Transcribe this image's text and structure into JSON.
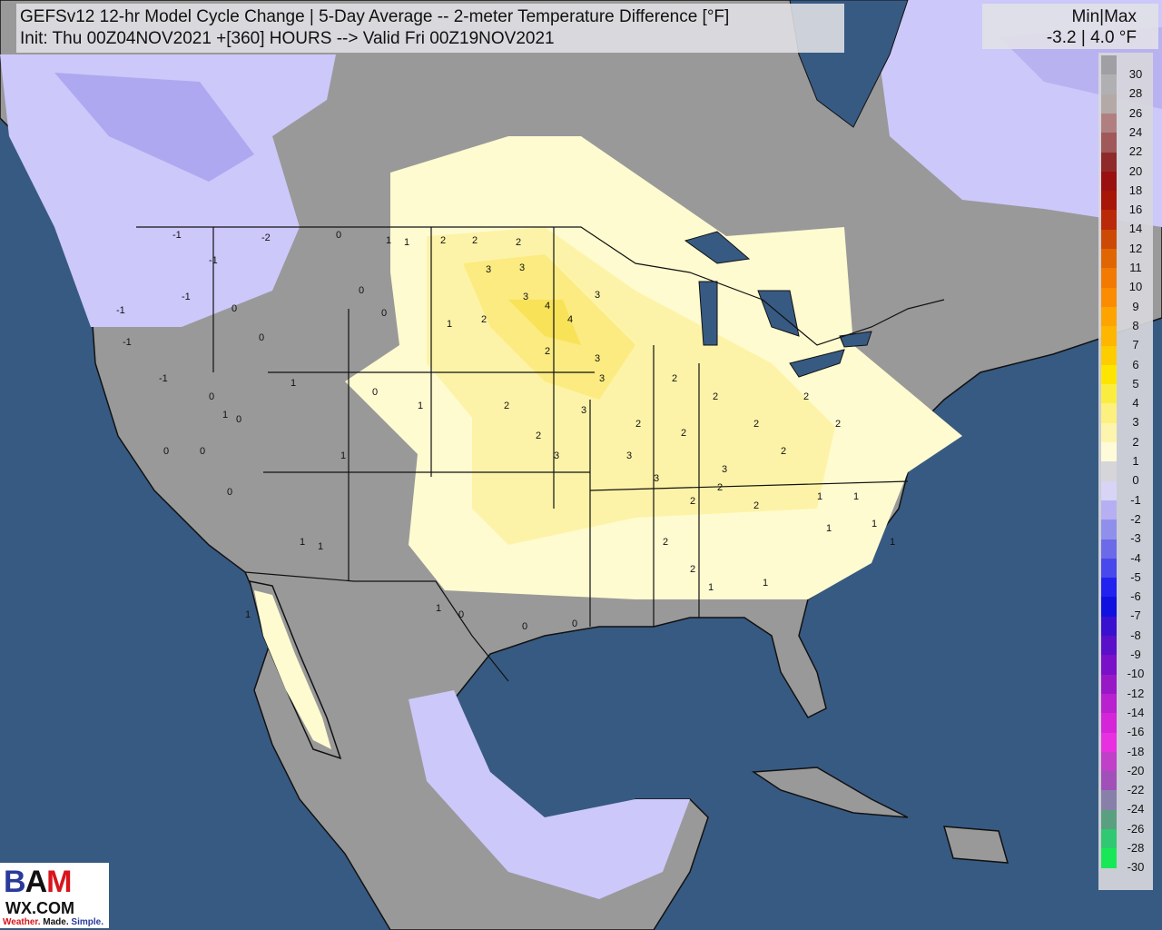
{
  "title": {
    "line1": "GEFSv12 12-hr Model Cycle Change | 5-Day Average -- 2-meter Temperature Difference [°F]",
    "line2": "Init: Thu 00Z04NOV2021 +[360] HOURS --> Valid Fri 00Z19NOV2021"
  },
  "minmax": {
    "label": "Min|Max",
    "value": "-3.2 | 4.0 °F"
  },
  "colorbar": {
    "labels": [
      "30",
      "28",
      "26",
      "24",
      "22",
      "20",
      "18",
      "16",
      "14",
      "12",
      "11",
      "10",
      "9",
      "8",
      "7",
      "6",
      "5",
      "4",
      "3",
      "2",
      "1",
      "0",
      "-1",
      "-2",
      "-3",
      "-4",
      "-5",
      "-6",
      "-7",
      "-8",
      "-9",
      "-10",
      "-12",
      "-14",
      "-16",
      "-18",
      "-20",
      "-22",
      "-24",
      "-26",
      "-28",
      "-30"
    ],
    "colors": [
      "#a0a0a4",
      "#b0b0b3",
      "#b3a9a6",
      "#b08080",
      "#a05858",
      "#902a2a",
      "#9a1010",
      "#a81608",
      "#bb2a08",
      "#cc4a06",
      "#e06604",
      "#f37a02",
      "#fb8c02",
      "#fda400",
      "#feb600",
      "#fecd00",
      "#fee500",
      "#fbed40",
      "#fcf07e",
      "#fdf5ad",
      "#fffbd8",
      "#d6d6da",
      "#d8d4f6",
      "#b6b0f2",
      "#9090ec",
      "#6c6ae8",
      "#4848ec",
      "#2222f0",
      "#1010e0",
      "#3a10d0",
      "#5a0fc8",
      "#7a10c8",
      "#9818c8",
      "#b820d0",
      "#d624d8",
      "#e830e0",
      "#c040c8",
      "#a050b8",
      "#8880a8",
      "#5aa080",
      "#30c870",
      "#18e858"
    ]
  },
  "map": {
    "ocean_color": "#375a82",
    "land_color": "#999999",
    "anomaly_colors": {
      "1": "#fffbd0",
      "2": "#fdf3a8",
      "3": "#fbeb80",
      "4": "#f8e258",
      "-1": "#d6d2fa",
      "-2": "#b8b2f0"
    },
    "contour_labels": [
      "-1",
      "-2",
      "0",
      "-1",
      "-1",
      "-1",
      "-1",
      "-1",
      "0",
      "0",
      "1",
      "1",
      "0",
      "0",
      "1",
      "1",
      "1",
      "0",
      "1",
      "1",
      "2",
      "2",
      "3",
      "3",
      "2",
      "3",
      "4",
      "4",
      "3",
      "3",
      "2",
      "2",
      "2",
      "2",
      "3",
      "3",
      "2",
      "2",
      "2",
      "3",
      "3",
      "3",
      "2",
      "2",
      "2",
      "3",
      "2",
      "2",
      "2",
      "2",
      "2",
      "1",
      "1",
      "1",
      "1",
      "1",
      "1",
      "0",
      "0",
      "0",
      "0",
      "0",
      "1",
      "1",
      "1",
      "0",
      "1",
      "0",
      "0",
      "1",
      "2",
      "2"
    ]
  },
  "logo": {
    "brand": "BAM",
    "domain": "WX.COM",
    "tagline_1": "Weather.",
    "tagline_2": "Made.",
    "tagline_3": "Simple."
  }
}
